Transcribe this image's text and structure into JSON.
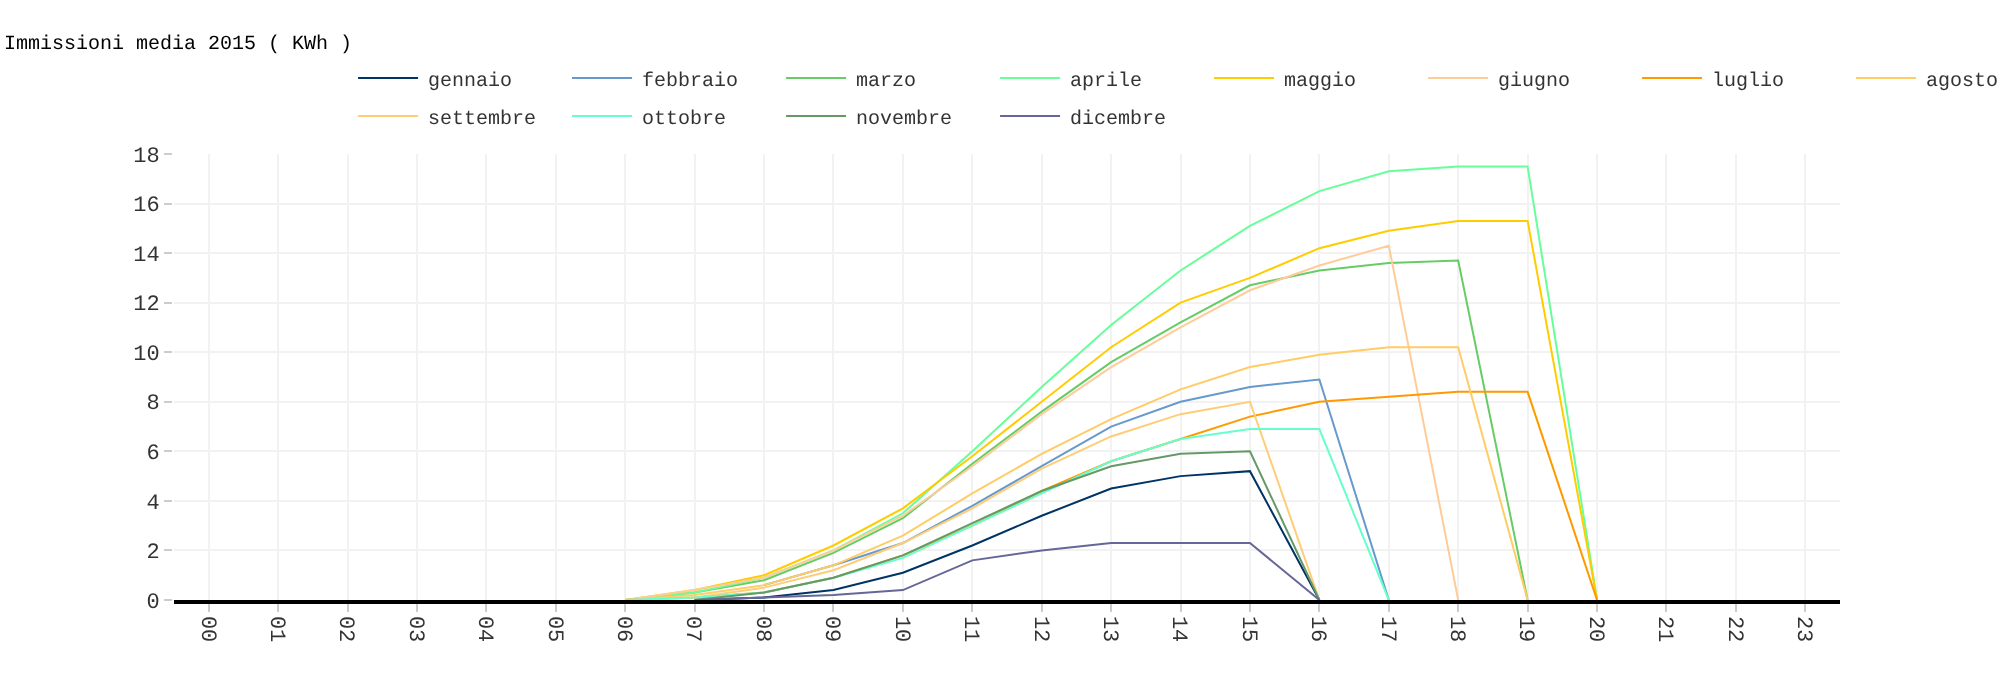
{
  "chart_data": {
    "type": "line",
    "legend_title": "Immissioni media 2015 ( KWh )",
    "legend": "top",
    "grid": true,
    "marker": "none",
    "line_style": "solid",
    "categories": [
      "00",
      "01",
      "02",
      "03",
      "04",
      "05",
      "06",
      "07",
      "08",
      "09",
      "10",
      "11",
      "12",
      "13",
      "14",
      "15",
      "16",
      "17",
      "18",
      "19",
      "20",
      "21",
      "22",
      "23"
    ],
    "ylim": [
      0,
      18
    ],
    "yticks": [
      0,
      2,
      4,
      6,
      8,
      10,
      12,
      14,
      16,
      18
    ],
    "series": [
      {
        "name": "gennaio",
        "color": "#003366",
        "values": [
          null,
          null,
          null,
          null,
          null,
          null,
          null,
          0,
          0.1,
          0.4,
          1.1,
          2.2,
          3.4,
          4.5,
          5.0,
          5.2,
          0,
          null,
          null,
          null,
          null,
          null,
          null,
          null
        ]
      },
      {
        "name": "febbraio",
        "color": "#6699cc",
        "values": [
          null,
          null,
          null,
          null,
          null,
          null,
          null,
          null,
          0.6,
          1.4,
          2.3,
          3.8,
          5.4,
          7.0,
          8.0,
          8.6,
          8.9,
          0,
          null,
          null,
          null,
          null,
          null,
          null
        ]
      },
      {
        "name": "marzo",
        "color": "#66cc66",
        "values": [
          null,
          null,
          null,
          null,
          null,
          null,
          0,
          0.3,
          0.8,
          1.9,
          3.3,
          5.5,
          7.6,
          9.6,
          11.2,
          12.7,
          13.3,
          13.6,
          13.7,
          0,
          null,
          null,
          null,
          null
        ]
      },
      {
        "name": "aprile",
        "color": "#66ff99",
        "values": [
          null,
          null,
          null,
          null,
          null,
          null,
          0,
          0.3,
          0.9,
          2.0,
          3.5,
          6.0,
          8.6,
          11.1,
          13.3,
          15.1,
          16.5,
          17.3,
          17.5,
          17.5,
          0,
          null,
          null,
          null
        ]
      },
      {
        "name": "maggio",
        "color": "#ffcc00",
        "values": [
          null,
          null,
          null,
          null,
          null,
          null,
          0,
          0.4,
          1.0,
          2.2,
          3.7,
          5.8,
          8.0,
          10.2,
          12.0,
          13.0,
          14.2,
          14.9,
          15.3,
          15.3,
          0,
          null,
          null,
          null
        ]
      },
      {
        "name": "giugno",
        "color": "#ffcc99",
        "values": [
          null,
          null,
          null,
          null,
          null,
          null,
          0,
          0.4,
          0.9,
          2.0,
          3.4,
          5.4,
          7.5,
          9.4,
          11.0,
          12.5,
          13.5,
          14.3,
          0,
          null,
          null,
          null,
          null,
          null
        ]
      },
      {
        "name": "luglio",
        "color": "#ff9900",
        "values": [
          null,
          null,
          null,
          null,
          null,
          null,
          0,
          0.1,
          0.3,
          0.9,
          1.8,
          3.0,
          4.4,
          5.6,
          6.5,
          7.4,
          8.0,
          8.2,
          8.4,
          8.4,
          0,
          null,
          null,
          null
        ]
      },
      {
        "name": "agosto",
        "color": "#ffcc66",
        "values": [
          null,
          null,
          null,
          null,
          null,
          null,
          0,
          0.2,
          0.6,
          1.4,
          2.6,
          4.3,
          5.9,
          7.3,
          8.5,
          9.4,
          9.9,
          10.2,
          10.2,
          0,
          null,
          null,
          null,
          null
        ]
      },
      {
        "name": "settembre",
        "color": "#ffcc77",
        "values": [
          null,
          null,
          null,
          null,
          null,
          null,
          0,
          0.1,
          0.5,
          1.2,
          2.3,
          3.7,
          5.3,
          6.6,
          7.5,
          8.0,
          0,
          null,
          null,
          null,
          null,
          null,
          null,
          null
        ]
      },
      {
        "name": "ottobre",
        "color": "#66ffcc",
        "values": [
          null,
          null,
          null,
          null,
          null,
          null,
          0,
          0.1,
          0.3,
          0.9,
          1.7,
          3.0,
          4.3,
          5.6,
          6.5,
          6.9,
          6.9,
          0,
          null,
          null,
          null,
          null,
          null,
          null
        ]
      },
      {
        "name": "novembre",
        "color": "#669966",
        "values": [
          null,
          null,
          null,
          null,
          null,
          null,
          null,
          0,
          0.3,
          0.9,
          1.8,
          3.1,
          4.4,
          5.4,
          5.9,
          6.0,
          0,
          null,
          null,
          null,
          null,
          null,
          null,
          null
        ]
      },
      {
        "name": "dicembre",
        "color": "#666699",
        "values": [
          null,
          null,
          null,
          null,
          null,
          null,
          null,
          0,
          0.1,
          0.2,
          0.4,
          1.6,
          2.0,
          2.3,
          2.3,
          2.3,
          0,
          null,
          null,
          null,
          null,
          null,
          null,
          null
        ]
      }
    ]
  }
}
